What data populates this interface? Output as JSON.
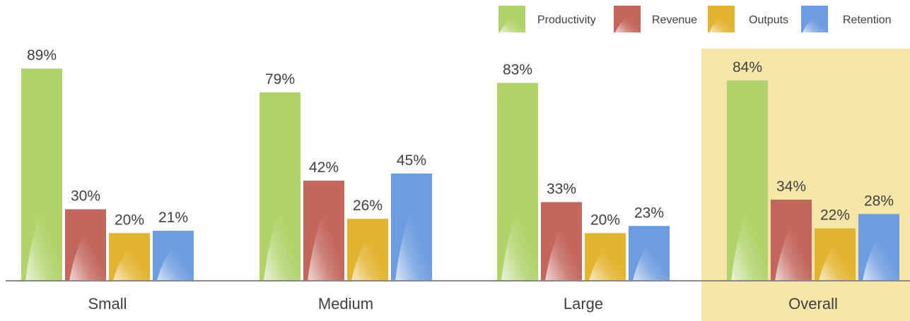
{
  "chart_data": {
    "type": "bar",
    "title": "",
    "xlabel": "",
    "ylabel": "",
    "ylim": [
      0,
      100
    ],
    "grid": false,
    "legend_position": "top-right",
    "value_suffix": "%",
    "categories": [
      "Small",
      "Medium",
      "Large",
      "Overall"
    ],
    "highlight_category": "Overall",
    "series": [
      {
        "name": "Productivity",
        "values": [
          89,
          79,
          83,
          84
        ]
      },
      {
        "name": "Revenue",
        "values": [
          30,
          42,
          33,
          34
        ]
      },
      {
        "name": "Outputs",
        "values": [
          20,
          26,
          20,
          22
        ]
      },
      {
        "name": "Retention",
        "values": [
          21,
          45,
          23,
          28
        ]
      }
    ]
  },
  "colors": {
    "series": [
      "#b1d36b",
      "#c3675d",
      "#e3b42f",
      "#6e9ce0"
    ],
    "highlight_background": "#f8e6a8",
    "axis": "#888888",
    "label_text": "#404040"
  }
}
